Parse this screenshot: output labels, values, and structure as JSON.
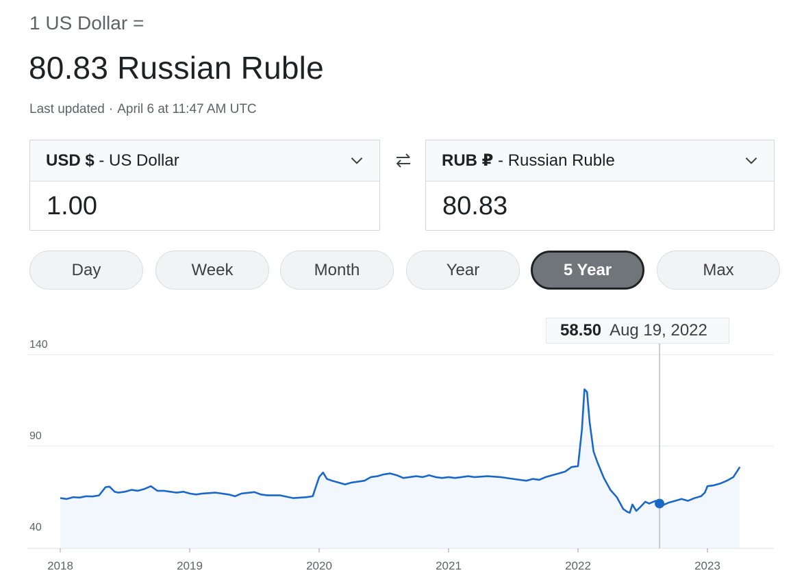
{
  "header": {
    "prefix": "1 US Dollar =",
    "result": "80.83 Russian Ruble",
    "updated_label": "Last updated",
    "updated_separator": "·",
    "updated_time": "April 6 at 11:47 AM UTC"
  },
  "converter": {
    "from": {
      "code": "USD $",
      "name": " - US Dollar",
      "value": "1.00"
    },
    "to": {
      "code": "RUB ₽",
      "name": " - Russian Ruble",
      "value": "80.83"
    },
    "swap_icon": "swap-arrows-icon"
  },
  "ranges": [
    {
      "label": "Day",
      "active": false
    },
    {
      "label": "Week",
      "active": false
    },
    {
      "label": "Month",
      "active": false
    },
    {
      "label": "Year",
      "active": false
    },
    {
      "label": "5 Year",
      "active": true
    },
    {
      "label": "Max",
      "active": false
    }
  ],
  "tooltip": {
    "value": "58.50",
    "date": "Aug 19, 2022"
  },
  "colors": {
    "line": "#1a67c9",
    "fill": "#e8f0fe",
    "grid": "#e8eaed",
    "accent_active": "#70757a"
  },
  "chart_data": {
    "type": "area",
    "title": "",
    "xlabel": "",
    "ylabel": "",
    "yticks": [
      "140",
      "90",
      "40"
    ],
    "ylim": [
      40,
      140
    ],
    "xticks": [
      "2018",
      "2019",
      "2020",
      "2021",
      "2022",
      "2023"
    ],
    "xlim": [
      2018.0,
      2023.55
    ],
    "grid": true,
    "series": [
      {
        "x": [
          2018.0,
          2018.05,
          2018.1,
          2018.15,
          2018.2,
          2018.25,
          2018.3,
          2018.35,
          2018.38,
          2018.42,
          2018.45,
          2018.5,
          2018.55,
          2018.6,
          2018.65,
          2018.7,
          2018.75,
          2018.8,
          2018.85,
          2018.9,
          2018.95,
          2019.0,
          2019.05,
          2019.1,
          2019.2,
          2019.3,
          2019.35,
          2019.4,
          2019.5,
          2019.55,
          2019.6,
          2019.7,
          2019.8,
          2019.9,
          2019.95,
          2020.0,
          2020.03,
          2020.06,
          2020.1,
          2020.15,
          2020.2,
          2020.25,
          2020.3,
          2020.35,
          2020.4,
          2020.45,
          2020.5,
          2020.55,
          2020.6,
          2020.65,
          2020.7,
          2020.75,
          2020.8,
          2020.85,
          2020.9,
          2020.95,
          2021.0,
          2021.05,
          2021.1,
          2021.15,
          2021.2,
          2021.3,
          2021.4,
          2021.5,
          2021.6,
          2021.65,
          2021.7,
          2021.75,
          2021.8,
          2021.85,
          2021.9,
          2021.95,
          2022.0,
          2022.03,
          2022.05,
          2022.07,
          2022.09,
          2022.12,
          2022.15,
          2022.2,
          2022.25,
          2022.3,
          2022.35,
          2022.38,
          2022.4,
          2022.42,
          2022.45,
          2022.48,
          2022.52,
          2022.55,
          2022.6,
          2022.65,
          2022.7,
          2022.75,
          2022.8,
          2022.85,
          2022.9,
          2022.95,
          2022.98,
          2023.0,
          2023.05,
          2023.1,
          2023.15,
          2023.2,
          2023.25
        ],
        "y": [
          61.5,
          61.0,
          62.0,
          61.8,
          62.5,
          62.4,
          63.0,
          67.5,
          67.8,
          65.0,
          64.5,
          65.0,
          66.0,
          65.5,
          66.5,
          68.0,
          65.5,
          65.5,
          65.0,
          64.5,
          65.0,
          64.0,
          63.5,
          64.0,
          64.5,
          63.5,
          62.5,
          64.0,
          64.8,
          63.5,
          63.0,
          63.0,
          61.5,
          62.0,
          62.5,
          73.0,
          75.5,
          72.0,
          71.0,
          70.0,
          69.0,
          70.0,
          70.5,
          71.0,
          73.0,
          73.5,
          74.5,
          75.0,
          74.0,
          72.5,
          73.0,
          73.5,
          73.0,
          74.0,
          73.0,
          72.5,
          73.0,
          72.5,
          73.0,
          73.5,
          73.0,
          73.5,
          73.0,
          72.0,
          71.0,
          72.0,
          71.5,
          73.0,
          74.0,
          75.0,
          76.0,
          78.5,
          79.0,
          99.0,
          121.0,
          119.5,
          103.0,
          87.0,
          81.0,
          72.5,
          66.0,
          62.0,
          55.5,
          54.0,
          53.5,
          58.0,
          54.5,
          56.5,
          59.5,
          58.5,
          60.0,
          57.5,
          59.0,
          60.0,
          61.0,
          60.0,
          61.5,
          62.5,
          64.5,
          68.0,
          68.5,
          69.5,
          71.0,
          73.0,
          78.5
        ]
      }
    ],
    "highlight": {
      "x": 2022.63,
      "y": 58.5,
      "label": "58.50",
      "date": "Aug 19, 2022"
    }
  }
}
